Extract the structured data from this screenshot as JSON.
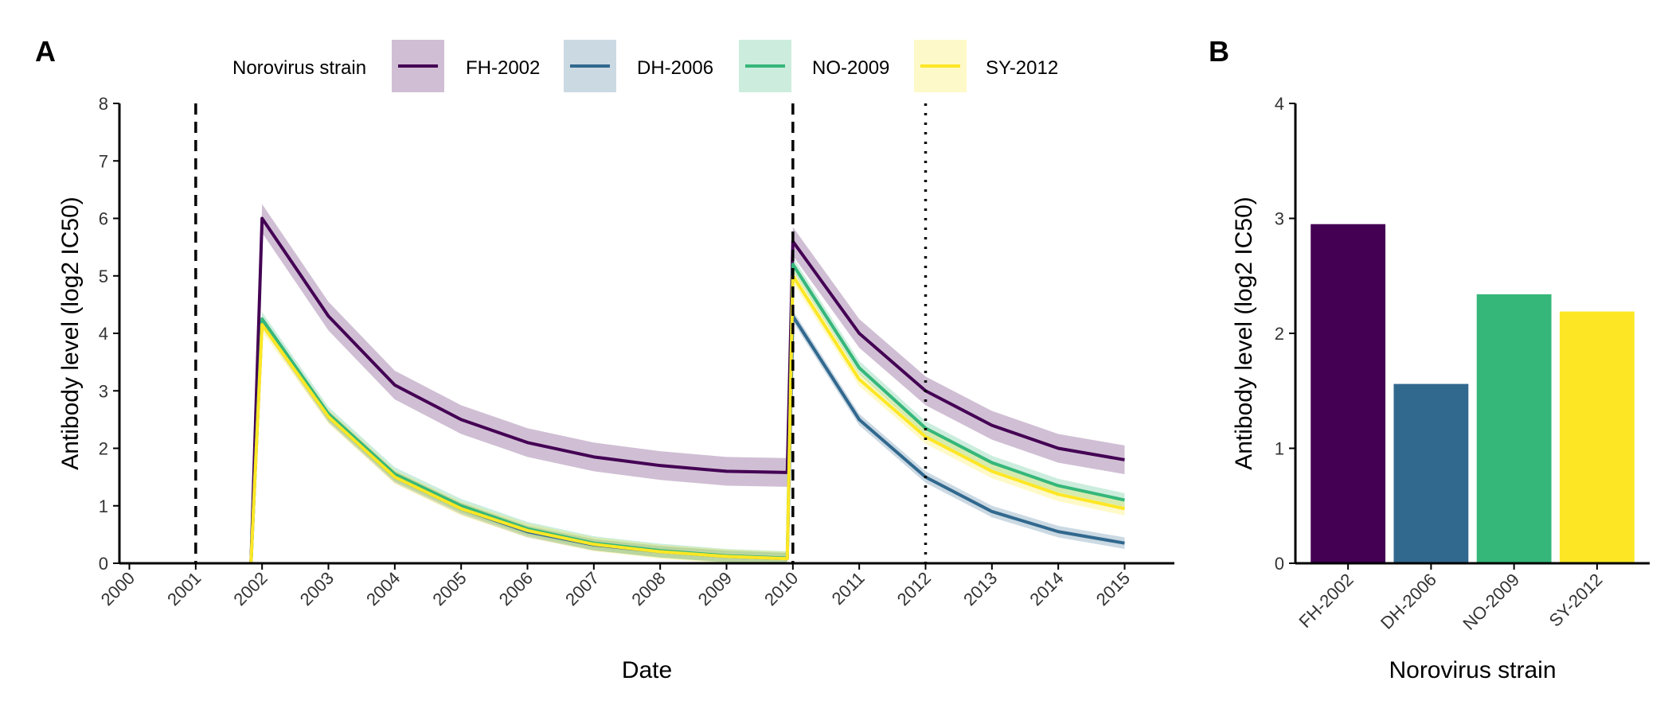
{
  "panels": {
    "a": {
      "tag": "A"
    },
    "b": {
      "tag": "B"
    }
  },
  "legend": {
    "title": "Norovirus strain",
    "items": [
      {
        "label": "FH-2002",
        "color": "#440154"
      },
      {
        "label": "DH-2006",
        "color": "#31688E"
      },
      {
        "label": "NO-2009",
        "color": "#35B779"
      },
      {
        "label": "SY-2012",
        "color": "#FDE725"
      }
    ]
  },
  "chart_data": [
    {
      "panel": "A",
      "type": "line",
      "title": "",
      "xlabel": "Date",
      "ylabel": "Antibody level (log2 IC50)",
      "x_ticks": [
        "2000",
        "2001",
        "2002",
        "2003",
        "2004",
        "2005",
        "2006",
        "2007",
        "2008",
        "2009",
        "2010",
        "2011",
        "2012",
        "2013",
        "2014",
        "2015"
      ],
      "xlim": [
        "2000-01-01",
        "2015-01-01"
      ],
      "ylim": [
        0,
        8
      ],
      "y_ticks": [
        0,
        1,
        2,
        3,
        4,
        5,
        6,
        7,
        8
      ],
      "grid": false,
      "legend_position": "top",
      "series": [
        {
          "name": "FH-2002",
          "color": "#440154",
          "x": [
            "2001-11-01",
            "2002-01-01",
            "2003-01-01",
            "2004-01-01",
            "2005-01-01",
            "2006-01-01",
            "2007-01-01",
            "2008-01-01",
            "2009-01-01",
            "2009-12-01",
            "2010-01-01",
            "2011-01-01",
            "2012-01-01",
            "2013-01-01",
            "2014-01-01",
            "2015-01-01"
          ],
          "y": [
            0,
            6.0,
            4.3,
            3.1,
            2.5,
            2.1,
            1.85,
            1.7,
            1.6,
            1.58,
            5.6,
            4.0,
            3.0,
            2.4,
            2.0,
            1.8
          ],
          "band_halfwidth": 0.25
        },
        {
          "name": "DH-2006",
          "color": "#31688E",
          "x": [
            "2001-11-01",
            "2002-01-01",
            "2003-01-01",
            "2004-01-01",
            "2005-01-01",
            "2006-01-01",
            "2007-01-01",
            "2008-01-01",
            "2009-01-01",
            "2009-12-01",
            "2010-01-01",
            "2011-01-01",
            "2012-01-01",
            "2013-01-01",
            "2014-01-01",
            "2015-01-01"
          ],
          "y": [
            0,
            4.2,
            2.55,
            1.5,
            0.95,
            0.55,
            0.32,
            0.2,
            0.12,
            0.08,
            4.3,
            2.5,
            1.5,
            0.9,
            0.55,
            0.35
          ],
          "band_halfwidth": 0.1
        },
        {
          "name": "NO-2009",
          "color": "#35B779",
          "x": [
            "2001-11-01",
            "2002-01-01",
            "2003-01-01",
            "2004-01-01",
            "2005-01-01",
            "2006-01-01",
            "2007-01-01",
            "2008-01-01",
            "2009-01-01",
            "2009-12-01",
            "2010-01-01",
            "2011-01-01",
            "2012-01-01",
            "2013-01-01",
            "2014-01-01",
            "2015-01-01"
          ],
          "y": [
            0,
            4.25,
            2.6,
            1.55,
            1.0,
            0.6,
            0.35,
            0.22,
            0.13,
            0.09,
            5.2,
            3.4,
            2.35,
            1.75,
            1.35,
            1.1
          ],
          "band_halfwidth": 0.12
        },
        {
          "name": "SY-2012",
          "color": "#FDE725",
          "x": [
            "2001-11-01",
            "2002-01-01",
            "2003-01-01",
            "2004-01-01",
            "2005-01-01",
            "2006-01-01",
            "2007-01-01",
            "2008-01-01",
            "2009-01-01",
            "2009-12-01",
            "2010-01-01",
            "2011-01-01",
            "2012-01-01",
            "2013-01-01",
            "2014-01-01",
            "2015-01-01"
          ],
          "y": [
            0,
            4.15,
            2.55,
            1.5,
            0.95,
            0.57,
            0.33,
            0.2,
            0.12,
            0.08,
            5.0,
            3.2,
            2.2,
            1.6,
            1.2,
            0.95
          ],
          "band_halfwidth": 0.12
        }
      ],
      "vlines": [
        {
          "x": "2001-01-01",
          "style": "dashed"
        },
        {
          "x": "2010-01-01",
          "style": "dashed"
        },
        {
          "x": "2012-01-01",
          "style": "dotted"
        }
      ]
    },
    {
      "panel": "B",
      "type": "bar",
      "title": "",
      "xlabel": "Norovirus strain",
      "ylabel": "Antibody level (log2 IC50)",
      "categories": [
        "FH-2002",
        "DH-2006",
        "NO-2009",
        "SY-2012"
      ],
      "values": [
        2.95,
        1.56,
        2.34,
        2.19
      ],
      "colors": [
        "#440154",
        "#31688E",
        "#35B779",
        "#FDE725"
      ],
      "ylim": [
        0,
        4
      ],
      "y_ticks": [
        0,
        1,
        2,
        3,
        4
      ],
      "grid": false
    }
  ]
}
